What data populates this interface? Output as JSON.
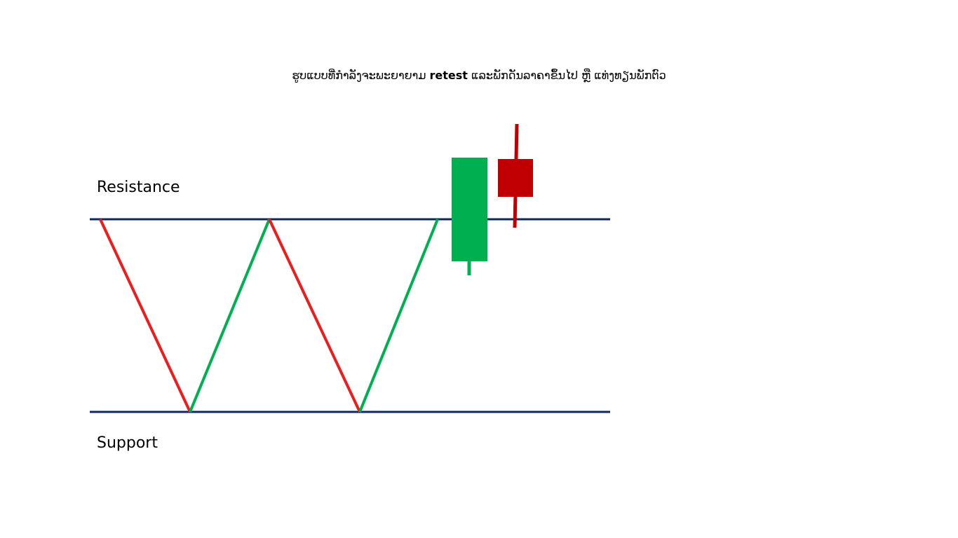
{
  "title": {
    "part1": "ຮູບແບບທີ່ກຳລັງຈະພະຍາຍາມ ",
    "bold": "retest",
    "part2": " ແລະພັກດັນລາຄາຂຶ້ນໄປ ຫຼື ແທ່ງທຽນພັກຕົວ"
  },
  "labels": {
    "resistance": "Resistance",
    "support": "Support"
  },
  "colors": {
    "level_line": "#0f2a5a",
    "down_leg": "#ee1c1c",
    "up_leg": "#00b050",
    "bull_candle": "#00b050",
    "bear_candle": "#c00000"
  },
  "candles": [
    {
      "direction": "bullish",
      "color_key": "bull_candle"
    },
    {
      "direction": "bearish",
      "color_key": "bear_candle"
    }
  ]
}
